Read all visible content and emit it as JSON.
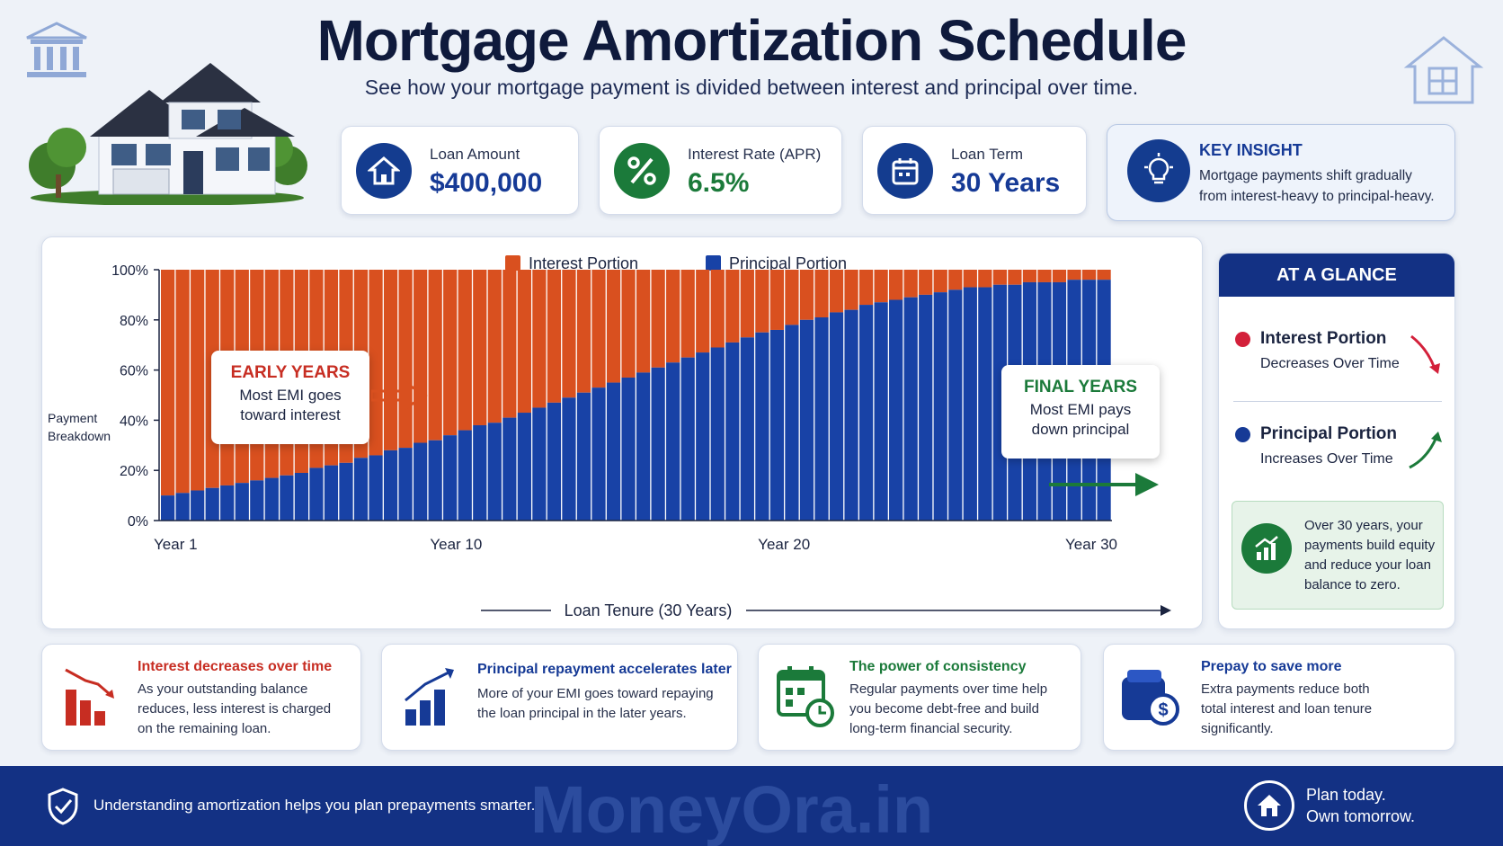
{
  "header": {
    "title": "Mortgage Amortization Schedule",
    "subtitle": "See how your mortgage payment is divided between interest and principal over time."
  },
  "stats": [
    {
      "label": "Loan Amount",
      "value": "$400,000",
      "icon": "house-icon",
      "color": "#143c8f"
    },
    {
      "label": "Interest Rate (APR)",
      "value": "6.5%",
      "icon": "percent-icon",
      "color": "#1b7a3a"
    },
    {
      "label": "Loan Term",
      "value": "30 Years",
      "icon": "calendar-icon",
      "color": "#143c8f"
    }
  ],
  "key_insight": {
    "title": "KEY INSIGHT",
    "text_line1": "Mortgage payments shift gradually",
    "text_line2": "from interest-heavy to principal-heavy."
  },
  "chart_data": {
    "type": "bar",
    "stacked": true,
    "ylabel": "Payment Breakdown",
    "xlabel": "Loan Tenure (30 Years)",
    "yticks": [
      "100%",
      "80%",
      "60%",
      "40%",
      "20%",
      "0%"
    ],
    "ylim": [
      0,
      100
    ],
    "xticks": [
      "Year 1",
      "Year 10",
      "Year 20",
      "Year 30"
    ],
    "bar_count": 64,
    "principal_start_pct": 10,
    "principal_end_pct": 96,
    "legend": [
      "Interest Portion",
      "Principal Portion"
    ],
    "legend_placement": "top-center",
    "colors": {
      "interest": "#d9501f",
      "principal": "#1842a6"
    },
    "series": [
      {
        "name": "Interest Portion",
        "values": [
          90,
          89,
          88,
          87,
          86,
          85,
          84,
          83,
          82,
          81,
          79,
          78,
          77,
          75,
          74,
          72,
          71,
          69,
          68,
          66,
          64,
          62,
          61,
          59,
          57,
          55,
          53,
          51,
          49,
          47,
          45,
          43,
          41,
          39,
          37,
          35,
          33,
          31,
          29,
          27,
          25,
          24,
          22,
          20,
          19,
          17,
          16,
          14,
          13,
          12,
          11,
          10,
          9,
          8,
          7,
          7,
          6,
          6,
          5,
          5,
          5,
          4,
          4,
          4
        ]
      },
      {
        "name": "Principal Portion",
        "values": [
          10,
          11,
          12,
          13,
          14,
          15,
          16,
          17,
          18,
          19,
          21,
          22,
          23,
          25,
          26,
          28,
          29,
          31,
          32,
          34,
          36,
          38,
          39,
          41,
          43,
          45,
          47,
          49,
          51,
          53,
          55,
          57,
          59,
          61,
          63,
          65,
          67,
          69,
          71,
          73,
          75,
          76,
          78,
          80,
          81,
          83,
          84,
          86,
          87,
          88,
          89,
          90,
          91,
          92,
          93,
          93,
          94,
          94,
          95,
          95,
          95,
          96,
          96,
          96
        ]
      }
    ],
    "annotations": {
      "early": {
        "title": "EARLY YEARS",
        "line1": "Most EMI goes",
        "line2": "toward interest"
      },
      "final": {
        "title": "FINAL YEARS",
        "line1": "Most EMI pays",
        "line2": "down principal"
      }
    }
  },
  "at_a_glance": {
    "header": "AT A GLANCE",
    "interest_title": "Interest Portion",
    "interest_sub": "Decreases Over Time",
    "principal_title": "Principal Portion",
    "principal_sub": "Increases Over Time",
    "note": [
      "Over 30 years, your",
      "payments build equity",
      "and reduce your loan",
      "balance to zero."
    ]
  },
  "cards": [
    {
      "title": "Interest decreases over time",
      "lines": [
        "As your outstanding balance",
        "reduces, less interest is charged",
        "on the remaining loan."
      ],
      "color": "#c72d22"
    },
    {
      "title": "Principal repayment accelerates later",
      "lines": [
        "More of your EMI goes toward repaying",
        "the loan principal in the later years."
      ],
      "color": "#163a96"
    },
    {
      "title": "The power of consistency",
      "lines": [
        "Regular payments over time help",
        "you become debt-free and build",
        "long-term financial security."
      ],
      "color": "#1b7a3a"
    },
    {
      "title": "Prepay to save more",
      "lines": [
        "Extra payments reduce both",
        "total interest and loan tenure",
        "significantly."
      ],
      "color": "#163a96"
    }
  ],
  "footer": {
    "note": "Understanding amortization helps you plan prepayments smarter.",
    "watermark": "MoneyOra.in",
    "cta_line1": "Plan today.",
    "cta_line2": "Own tomorrow."
  }
}
